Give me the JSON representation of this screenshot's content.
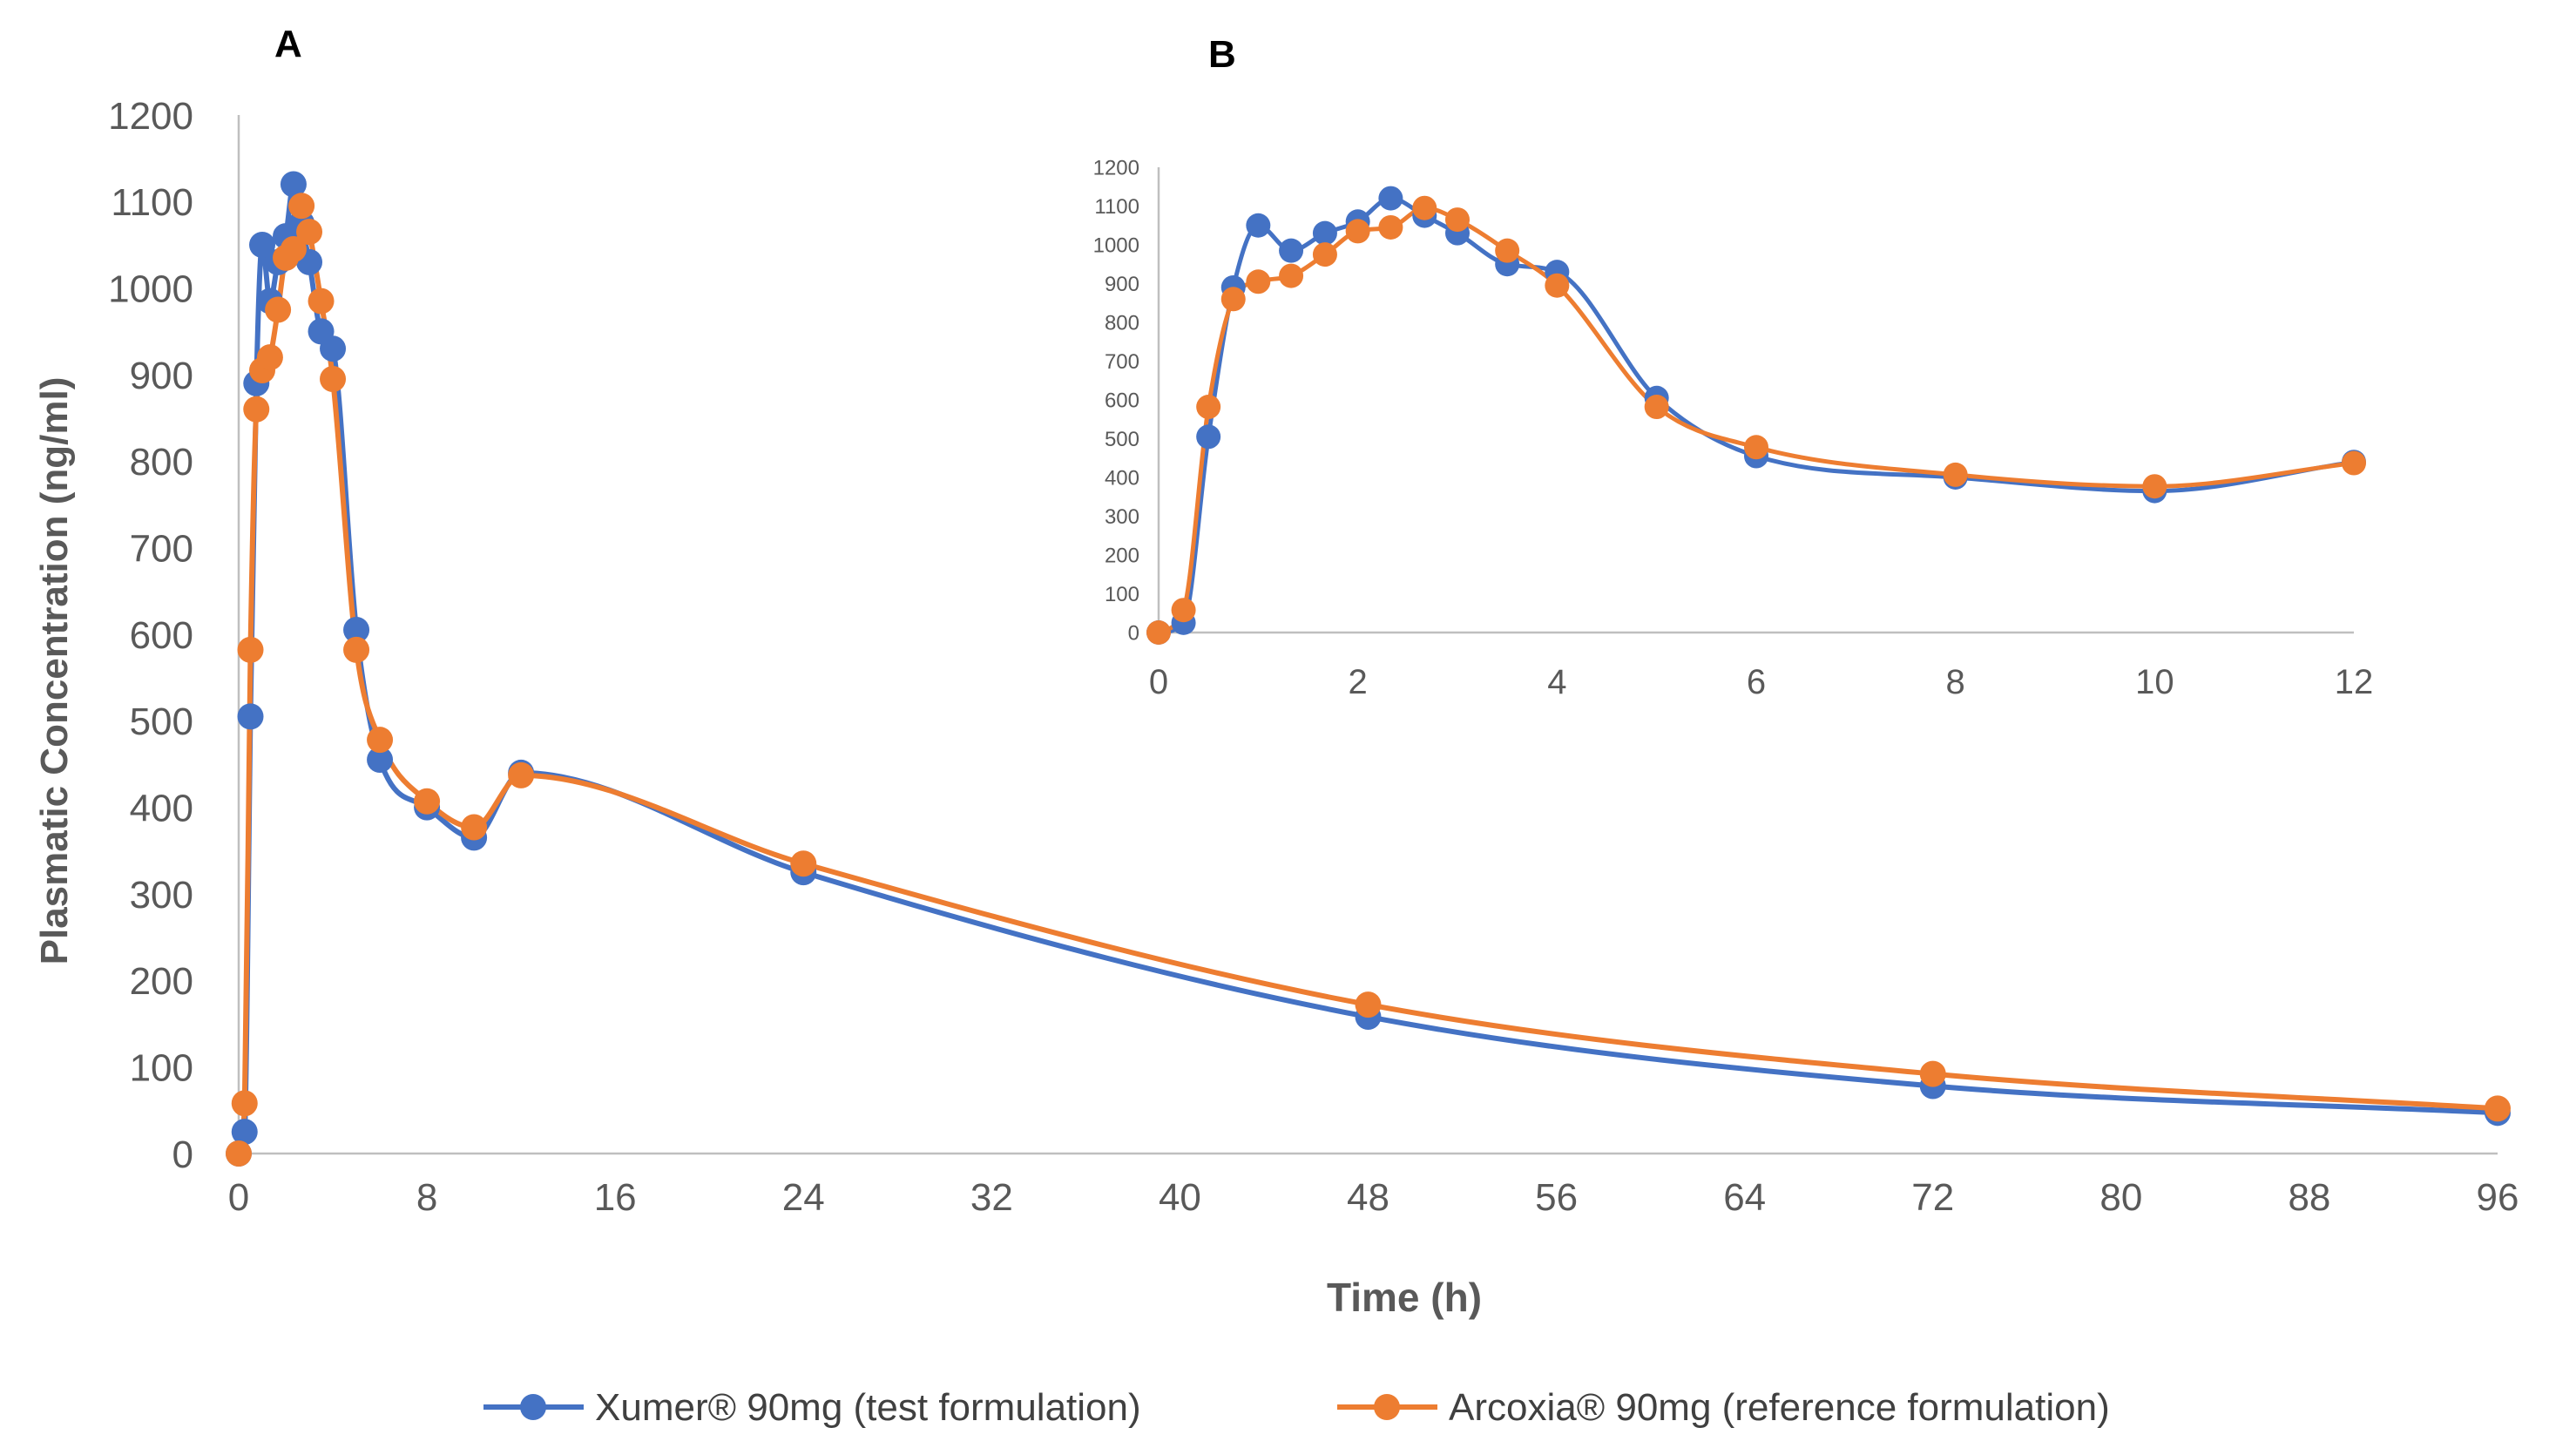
{
  "chart_data": [
    {
      "panel_label": "A",
      "type": "line",
      "xlabel": "Time (h)",
      "ylabel": "Plasmatic Concentration (ng/ml)",
      "xlim": [
        0,
        96
      ],
      "ylim": [
        0,
        1200
      ],
      "x_ticks": [
        0,
        8,
        16,
        24,
        32,
        40,
        48,
        56,
        64,
        72,
        80,
        88,
        96
      ],
      "y_ticks": [
        0,
        100,
        200,
        300,
        400,
        500,
        600,
        700,
        800,
        900,
        1000,
        1100,
        1200
      ],
      "grid": false,
      "legend_position": "bottom",
      "series": [
        {
          "name": "Xumer® 90mg (test formulation)",
          "color": "#4472C4",
          "x": [
            0,
            0.25,
            0.5,
            0.75,
            1,
            1.33,
            1.67,
            2,
            2.33,
            2.67,
            3,
            3.5,
            4,
            5,
            6,
            8,
            10,
            12,
            24,
            48,
            72,
            96
          ],
          "values": [
            0,
            25,
            505,
            890,
            1050,
            985,
            1030,
            1060,
            1120,
            1075,
            1030,
            950,
            930,
            605,
            455,
            400,
            365,
            440,
            325,
            158,
            78,
            47
          ]
        },
        {
          "name": "Arcoxia® 90mg (reference formulation)",
          "color": "#ED7D31",
          "x": [
            0,
            0.25,
            0.5,
            0.75,
            1,
            1.33,
            1.67,
            2,
            2.33,
            2.67,
            3,
            3.5,
            4,
            5,
            6,
            8,
            10,
            12,
            24,
            48,
            72,
            96
          ],
          "values": [
            0,
            58,
            582,
            860,
            905,
            920,
            975,
            1035,
            1045,
            1095,
            1065,
            985,
            895,
            582,
            478,
            407,
            377,
            437,
            335,
            172,
            92,
            52
          ]
        }
      ]
    },
    {
      "panel_label": "B",
      "type": "line",
      "xlim": [
        0,
        12
      ],
      "ylim": [
        0,
        1200
      ],
      "x_ticks": [
        0,
        2,
        4,
        6,
        8,
        10,
        12
      ],
      "y_ticks": [
        0,
        100,
        200,
        300,
        400,
        500,
        600,
        700,
        800,
        900,
        1000,
        1100,
        1200
      ],
      "grid": false,
      "series": [
        {
          "color": "#4472C4",
          "x": [
            0,
            0.25,
            0.5,
            0.75,
            1,
            1.33,
            1.67,
            2,
            2.33,
            2.67,
            3,
            3.5,
            4,
            5,
            6,
            8,
            10,
            12
          ],
          "values": [
            0,
            25,
            505,
            890,
            1050,
            985,
            1030,
            1060,
            1120,
            1075,
            1030,
            950,
            930,
            605,
            455,
            400,
            365,
            440
          ]
        },
        {
          "color": "#ED7D31",
          "x": [
            0,
            0.25,
            0.5,
            0.75,
            1,
            1.33,
            1.67,
            2,
            2.33,
            2.67,
            3,
            3.5,
            4,
            5,
            6,
            8,
            10,
            12
          ],
          "values": [
            0,
            58,
            582,
            860,
            905,
            920,
            975,
            1035,
            1045,
            1095,
            1065,
            985,
            895,
            582,
            478,
            407,
            377,
            437
          ]
        }
      ]
    }
  ],
  "legend": {
    "items": [
      {
        "label": "Xumer® 90mg (test formulation)",
        "color": "#4472C4"
      },
      {
        "label": "Arcoxia® 90mg (reference formulation)",
        "color": "#ED7D31"
      }
    ]
  }
}
